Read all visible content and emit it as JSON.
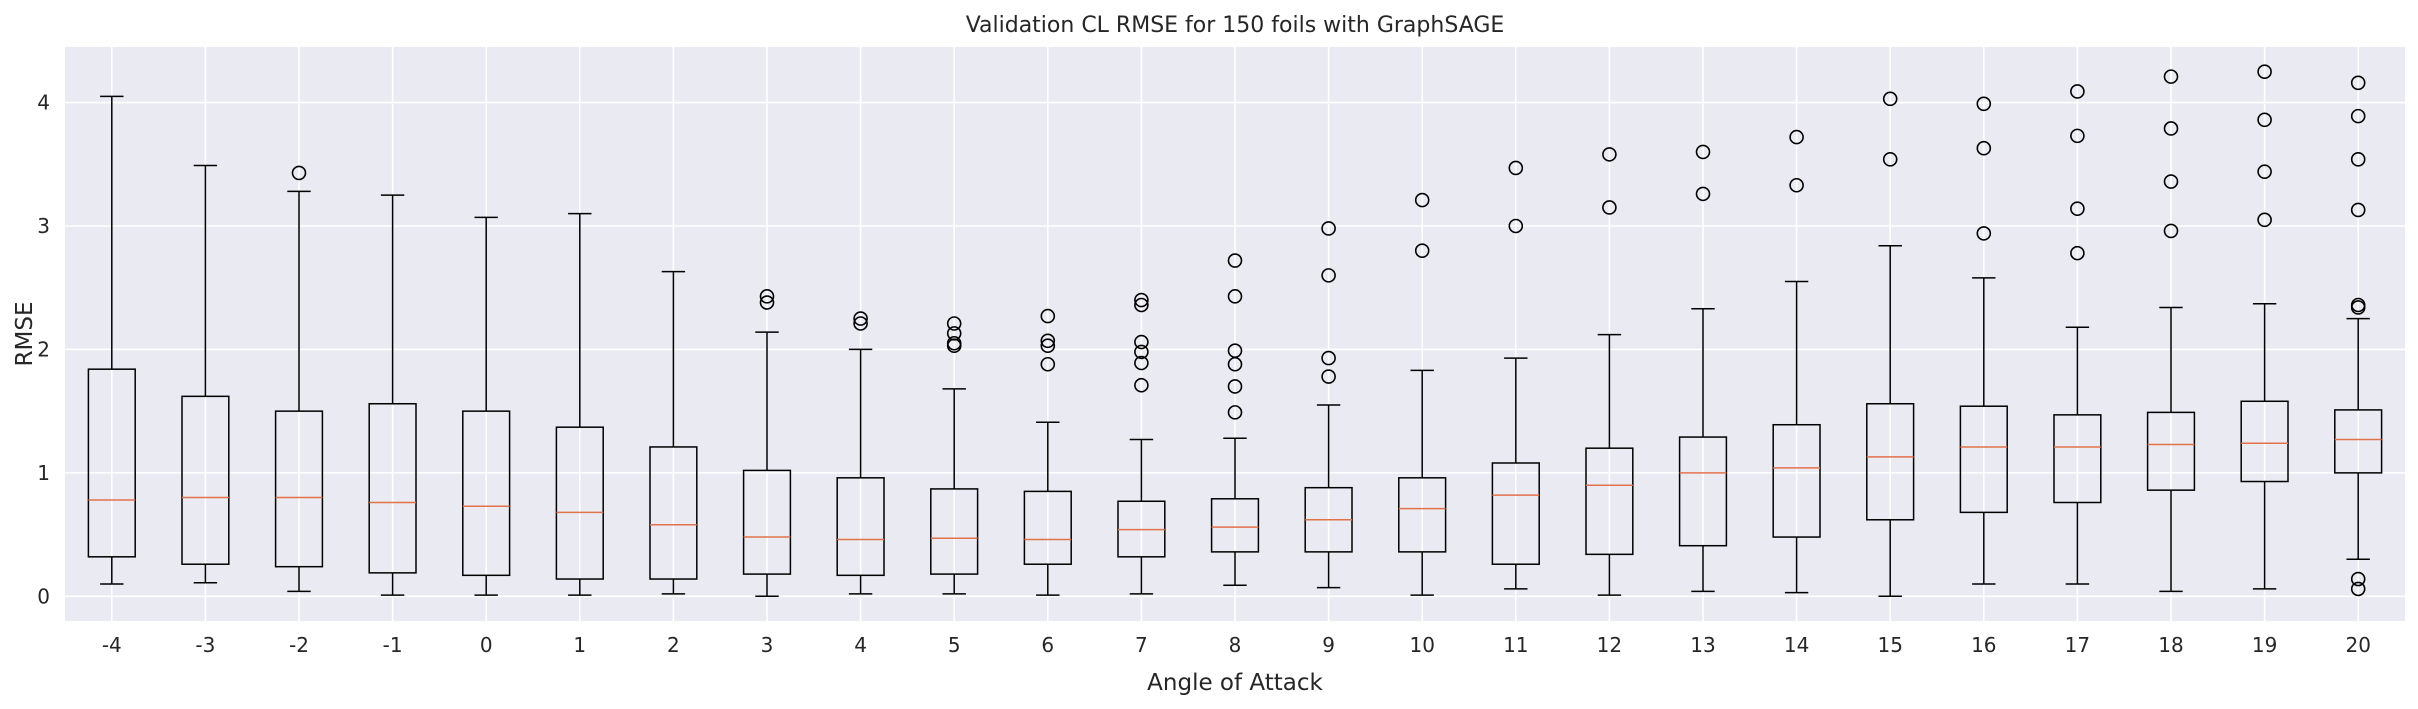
{
  "chart_data": {
    "type": "boxplot",
    "title": "Validation CL RMSE for 150 foils with GraphSAGE",
    "xlabel": "Angle of Attack",
    "ylabel": "RMSE",
    "ylim": [
      -0.2,
      4.45
    ],
    "yticks": [
      0,
      1,
      2,
      3,
      4
    ],
    "grid": true,
    "colors": {
      "background": "#eaeaf2",
      "grid": "#ffffff",
      "box": "#000000",
      "median": "#e1734a"
    },
    "categories": [
      "-4",
      "-3",
      "-2",
      "-1",
      "0",
      "1",
      "2",
      "3",
      "4",
      "5",
      "6",
      "7",
      "8",
      "9",
      "10",
      "11",
      "12",
      "13",
      "14",
      "15",
      "16",
      "17",
      "18",
      "19",
      "20"
    ],
    "boxes": [
      {
        "whislo": 0.1,
        "q1": 0.32,
        "med": 0.78,
        "q3": 1.84,
        "whishi": 4.05,
        "fliers": []
      },
      {
        "whislo": 0.11,
        "q1": 0.26,
        "med": 0.8,
        "q3": 1.62,
        "whishi": 3.49,
        "fliers": []
      },
      {
        "whislo": 0.04,
        "q1": 0.24,
        "med": 0.8,
        "q3": 1.5,
        "whishi": 3.28,
        "fliers": [
          3.43
        ]
      },
      {
        "whislo": 0.01,
        "q1": 0.19,
        "med": 0.76,
        "q3": 1.56,
        "whishi": 3.25,
        "fliers": []
      },
      {
        "whislo": 0.01,
        "q1": 0.17,
        "med": 0.73,
        "q3": 1.5,
        "whishi": 3.07,
        "fliers": []
      },
      {
        "whislo": 0.01,
        "q1": 0.14,
        "med": 0.68,
        "q3": 1.37,
        "whishi": 3.1,
        "fliers": []
      },
      {
        "whislo": 0.02,
        "q1": 0.14,
        "med": 0.58,
        "q3": 1.21,
        "whishi": 2.63,
        "fliers": []
      },
      {
        "whislo": 0.0,
        "q1": 0.18,
        "med": 0.48,
        "q3": 1.02,
        "whishi": 2.14,
        "fliers": [
          2.38,
          2.43
        ]
      },
      {
        "whislo": 0.02,
        "q1": 0.17,
        "med": 0.46,
        "q3": 0.96,
        "whishi": 2.0,
        "fliers": [
          2.21,
          2.25
        ]
      },
      {
        "whislo": 0.02,
        "q1": 0.18,
        "med": 0.47,
        "q3": 0.87,
        "whishi": 1.68,
        "fliers": [
          2.03,
          2.05,
          2.13,
          2.21
        ]
      },
      {
        "whislo": 0.01,
        "q1": 0.26,
        "med": 0.46,
        "q3": 0.85,
        "whishi": 1.41,
        "fliers": [
          1.88,
          2.03,
          2.07,
          2.27
        ]
      },
      {
        "whislo": 0.02,
        "q1": 0.32,
        "med": 0.54,
        "q3": 0.77,
        "whishi": 1.27,
        "fliers": [
          1.71,
          1.89,
          1.98,
          2.06,
          2.36,
          2.4
        ]
      },
      {
        "whislo": 0.09,
        "q1": 0.36,
        "med": 0.56,
        "q3": 0.79,
        "whishi": 1.28,
        "fliers": [
          1.49,
          1.7,
          1.88,
          1.99,
          2.43,
          2.72
        ]
      },
      {
        "whislo": 0.07,
        "q1": 0.36,
        "med": 0.62,
        "q3": 0.88,
        "whishi": 1.55,
        "fliers": [
          1.78,
          1.93,
          2.6,
          2.98
        ]
      },
      {
        "whislo": 0.01,
        "q1": 0.36,
        "med": 0.71,
        "q3": 0.96,
        "whishi": 1.83,
        "fliers": [
          2.8,
          3.21
        ]
      },
      {
        "whislo": 0.06,
        "q1": 0.26,
        "med": 0.82,
        "q3": 1.08,
        "whishi": 1.93,
        "fliers": [
          3.0,
          3.47
        ]
      },
      {
        "whislo": 0.01,
        "q1": 0.34,
        "med": 0.9,
        "q3": 1.2,
        "whishi": 2.12,
        "fliers": [
          3.15,
          3.58
        ]
      },
      {
        "whislo": 0.04,
        "q1": 0.41,
        "med": 1.0,
        "q3": 1.29,
        "whishi": 2.33,
        "fliers": [
          3.26,
          3.6
        ]
      },
      {
        "whislo": 0.03,
        "q1": 0.48,
        "med": 1.04,
        "q3": 1.39,
        "whishi": 2.55,
        "fliers": [
          3.33,
          3.72
        ]
      },
      {
        "whislo": 0.0,
        "q1": 0.62,
        "med": 1.13,
        "q3": 1.56,
        "whishi": 2.84,
        "fliers": [
          3.54,
          4.03
        ]
      },
      {
        "whislo": 0.1,
        "q1": 0.68,
        "med": 1.21,
        "q3": 1.54,
        "whishi": 2.58,
        "fliers": [
          2.94,
          3.63,
          3.99
        ]
      },
      {
        "whislo": 0.1,
        "q1": 0.76,
        "med": 1.21,
        "q3": 1.47,
        "whishi": 2.18,
        "fliers": [
          2.78,
          3.14,
          3.73,
          4.09
        ]
      },
      {
        "whislo": 0.04,
        "q1": 0.86,
        "med": 1.23,
        "q3": 1.49,
        "whishi": 2.34,
        "fliers": [
          2.96,
          3.36,
          3.79,
          4.21
        ]
      },
      {
        "whislo": 0.06,
        "q1": 0.93,
        "med": 1.24,
        "q3": 1.58,
        "whishi": 2.37,
        "fliers": [
          3.05,
          3.44,
          3.86,
          4.25
        ]
      },
      {
        "whislo": 0.3,
        "q1": 1.0,
        "med": 1.27,
        "q3": 1.51,
        "whishi": 2.25,
        "fliers": [
          0.06,
          0.14,
          2.34,
          2.36,
          3.13,
          3.54,
          3.89,
          4.16
        ]
      }
    ]
  }
}
